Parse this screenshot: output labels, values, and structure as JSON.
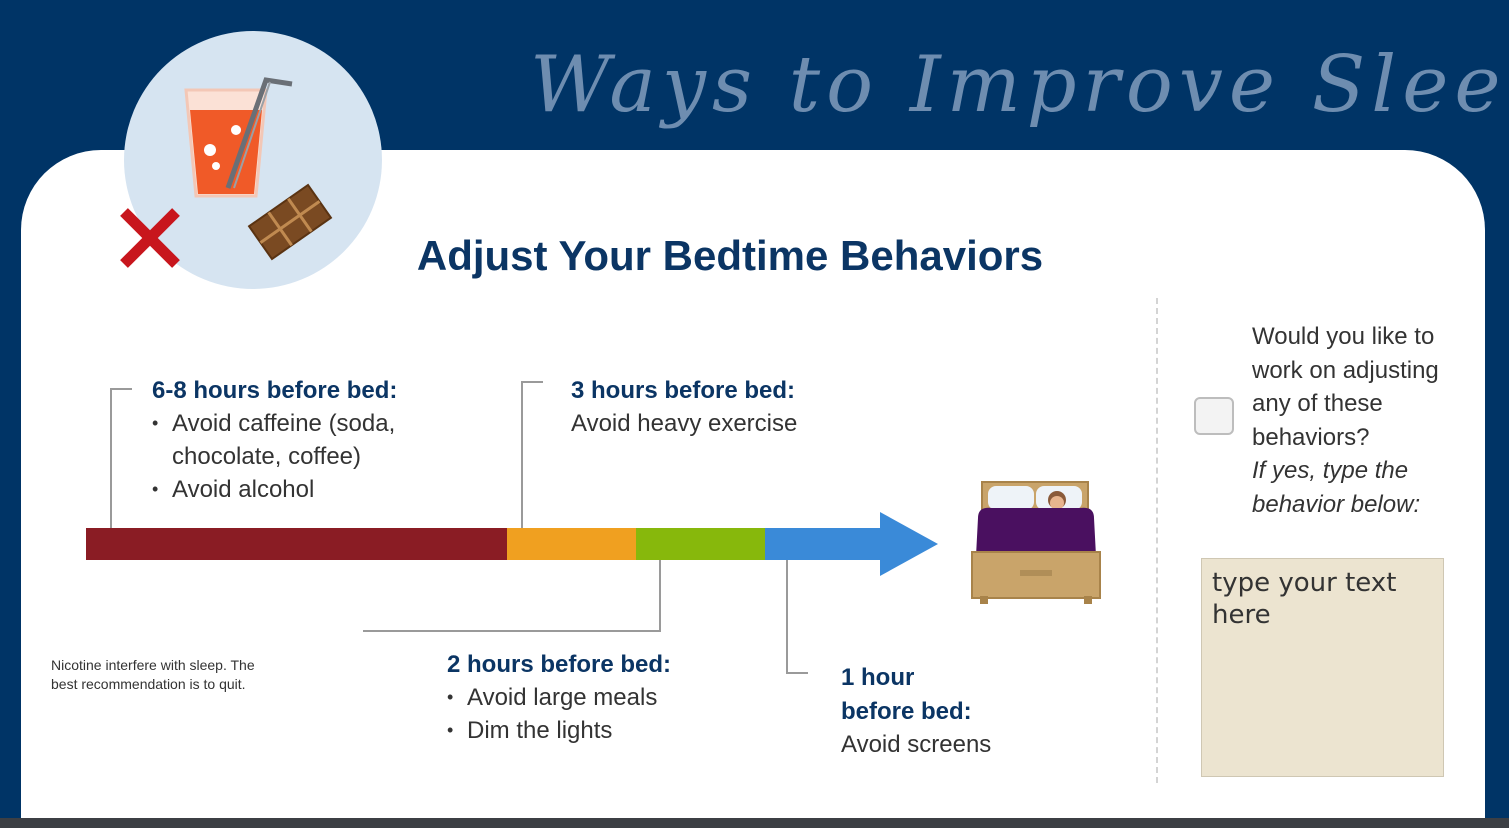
{
  "banner": {
    "title": "Ways to Improve Sleep"
  },
  "heading": "Adjust Your Bedtime Behaviors",
  "timeline": {
    "colors": {
      "red": "#8a1c24",
      "orange": "#f0a020",
      "green": "#87b80c",
      "blue": "#3a8ad8"
    },
    "step_6_8": {
      "label": "6-8 hours before bed:",
      "items": [
        "Avoid caffeine (soda,",
        "chocolate, coffee)",
        "Avoid alcohol"
      ]
    },
    "step_3": {
      "label": "3 hours before bed:",
      "text": "Avoid heavy exercise"
    },
    "step_2": {
      "label": "2 hours before bed:",
      "items": [
        "Avoid large meals",
        "Dim the lights"
      ]
    },
    "step_1": {
      "label_line1": "1 hour",
      "label_line2": "before bed:",
      "text": "Avoid screens"
    }
  },
  "note": {
    "line1": "Nicotine interfere with sleep. The",
    "line2": "best recommendation is to quit."
  },
  "side": {
    "question": "Would you like to work on adjusting any of these behaviors?",
    "question_em": "If yes, type the behavior below:",
    "textbox_placeholder": "type your text here"
  },
  "icons": [
    "drink-icon",
    "chocolate-icon",
    "no-x-icon",
    "bed-icon"
  ]
}
